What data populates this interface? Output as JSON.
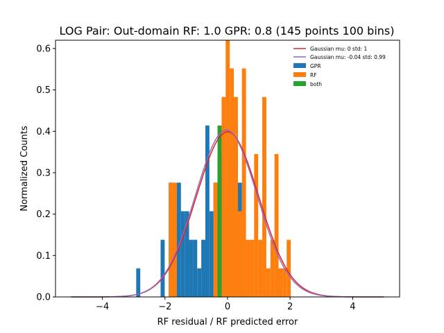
{
  "chart_data": {
    "type": "bar",
    "title": "LOG Pair: Out-domain RF: 1.0 GPR: 0.8 (145 points 100 bins)",
    "xlabel": "RF residual / RF predicted error",
    "ylabel": "Normalized Counts",
    "xlim": [
      -5.5,
      5.5
    ],
    "ylim": [
      0,
      0.62
    ],
    "xticks": [
      -4,
      -2,
      0,
      2,
      4
    ],
    "xtick_labels": [
      "−4",
      "−2",
      "0",
      "2",
      "4"
    ],
    "yticks": [
      0.0,
      0.1,
      0.2,
      0.3,
      0.4,
      0.5,
      0.6
    ],
    "ytick_labels": [
      "0.0",
      "0.1",
      "0.2",
      "0.3",
      "0.4",
      "0.5",
      "0.6"
    ],
    "grid": false,
    "legend_position": "top-right",
    "series": [
      {
        "name": "GPR",
        "color": "#1f77b4",
        "bars": [
          [
            -2.92,
            -2.79,
            0.069
          ],
          [
            -2.14,
            -2.01,
            0.138
          ],
          [
            -1.88,
            -1.75,
            0.276
          ],
          [
            -1.75,
            -1.62,
            0.207
          ],
          [
            -1.62,
            -1.49,
            0.276
          ],
          [
            -1.49,
            -1.36,
            0.207
          ],
          [
            -1.36,
            -1.23,
            0.207
          ],
          [
            -1.23,
            -1.1,
            0.138
          ],
          [
            -1.1,
            -0.97,
            0.138
          ],
          [
            -0.97,
            -0.84,
            0.069
          ],
          [
            -0.84,
            -0.71,
            0.138
          ],
          [
            -0.71,
            -0.58,
            0.414
          ],
          [
            -0.58,
            -0.45,
            0.207
          ],
          [
            -0.45,
            -0.32,
            0.276
          ],
          [
            -0.32,
            -0.19,
            0.345
          ],
          [
            -0.19,
            -0.06,
            0.207
          ],
          [
            -0.06,
            0.07,
            0.483
          ],
          [
            0.07,
            0.2,
            0.345
          ],
          [
            0.2,
            0.33,
            0.414
          ],
          [
            0.33,
            0.46,
            0.276
          ],
          [
            0.46,
            0.59,
            0.138
          ]
        ]
      },
      {
        "name": "RF",
        "color": "#ff7f0e",
        "bars": [
          [
            -1.88,
            -1.75,
            0.276
          ],
          [
            -1.75,
            -1.62,
            0.276
          ],
          [
            -0.45,
            -0.32,
            0.276
          ],
          [
            -0.19,
            -0.06,
            0.483
          ],
          [
            -0.06,
            0.07,
            0.62
          ],
          [
            0.07,
            0.2,
            0.552
          ],
          [
            0.2,
            0.33,
            0.483
          ],
          [
            0.33,
            0.46,
            0.207
          ],
          [
            0.46,
            0.59,
            0.552
          ],
          [
            0.59,
            0.72,
            0.138
          ],
          [
            0.72,
            0.85,
            0.138
          ],
          [
            0.85,
            0.98,
            0.345
          ],
          [
            0.98,
            1.11,
            0.138
          ],
          [
            1.11,
            1.24,
            0.483
          ],
          [
            1.24,
            1.37,
            0.069
          ],
          [
            1.37,
            1.5,
            0.138
          ],
          [
            1.5,
            1.63,
            0.345
          ],
          [
            1.63,
            1.76,
            0.069
          ],
          [
            1.76,
            1.89,
            0.069
          ],
          [
            1.89,
            2.02,
            0.138
          ]
        ]
      },
      {
        "name": "both",
        "color": "#2ca02c",
        "bars": [
          [
            -0.32,
            -0.19,
            0.414
          ]
        ]
      }
    ],
    "curves": [
      {
        "name": "Gaussian mu: 0 std: 1",
        "color": "#d62728",
        "mu": 0,
        "std": 1,
        "x_range": [
          -5,
          5
        ]
      },
      {
        "name": "Gaussian mu: -0.04 std: 0.99",
        "color": "#9467bd",
        "mu": -0.04,
        "std": 0.99,
        "x_range": [
          -5,
          5
        ]
      }
    ]
  }
}
